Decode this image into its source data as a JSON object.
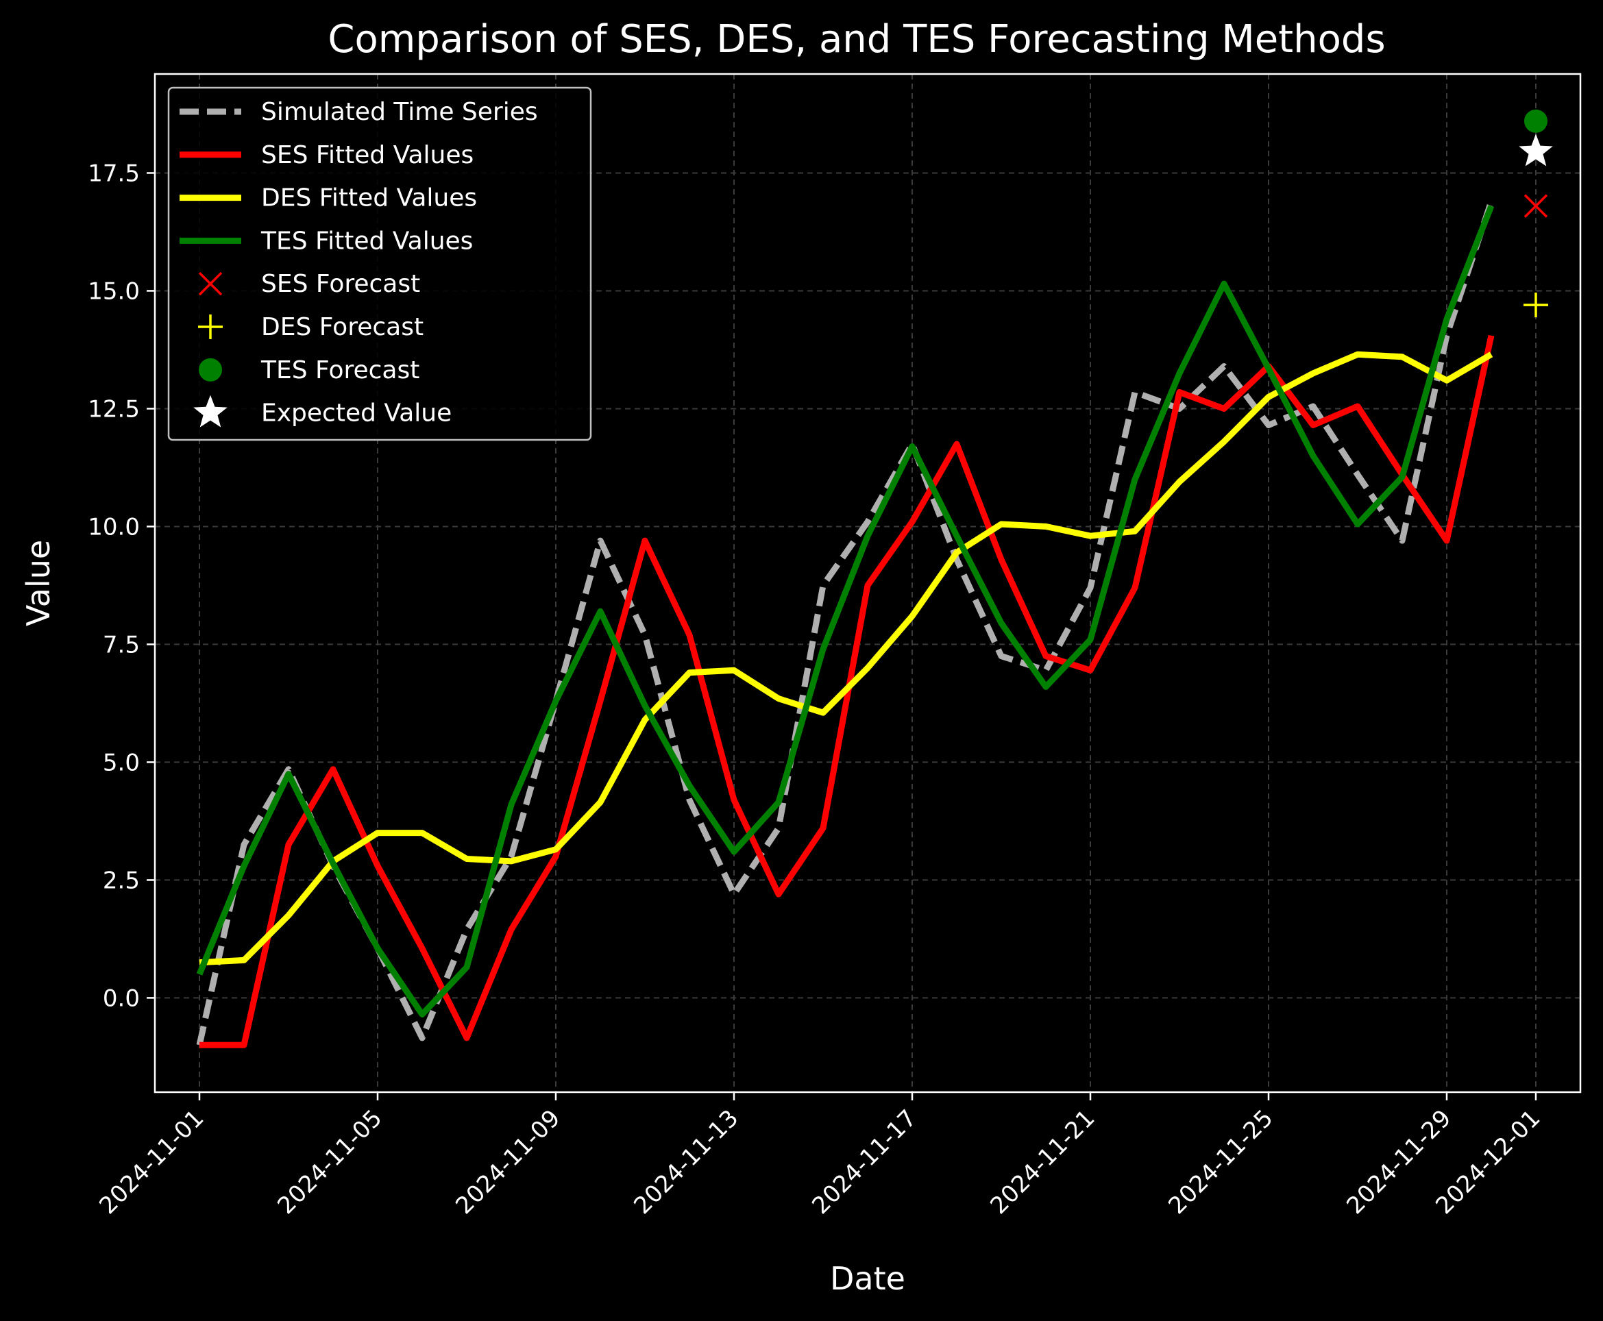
{
  "chart_data": {
    "type": "line",
    "title": "Comparison of SES, DES, and TES Forecasting Methods",
    "xlabel": "Date",
    "ylabel": "Value",
    "x": [
      "2024-11-01",
      "2024-11-02",
      "2024-11-03",
      "2024-11-04",
      "2024-11-05",
      "2024-11-06",
      "2024-11-07",
      "2024-11-08",
      "2024-11-09",
      "2024-11-10",
      "2024-11-11",
      "2024-11-12",
      "2024-11-13",
      "2024-11-14",
      "2024-11-15",
      "2024-11-16",
      "2024-11-17",
      "2024-11-18",
      "2024-11-19",
      "2024-11-20",
      "2024-11-21",
      "2024-11-22",
      "2024-11-23",
      "2024-11-24",
      "2024-11-25",
      "2024-11-26",
      "2024-11-27",
      "2024-11-28",
      "2024-11-29",
      "2024-11-30"
    ],
    "x_ticks": [
      "2024-11-01",
      "2024-11-05",
      "2024-11-09",
      "2024-11-13",
      "2024-11-17",
      "2024-11-21",
      "2024-11-25",
      "2024-11-29",
      "2024-12-01"
    ],
    "y_ticks": [
      "0.0",
      "2.5",
      "5.0",
      "7.5",
      "10.0",
      "12.5",
      "15.0",
      "17.5"
    ],
    "xlim": [
      "2024-10-31",
      "2024-12-02"
    ],
    "ylim": [
      -2.0,
      19.6
    ],
    "grid": true,
    "legend_position": "top-left",
    "series": [
      {
        "name": "Simulated Time Series",
        "color": "#b0b0b0",
        "style": "dashed",
        "values": [
          -1.0,
          3.25,
          4.85,
          2.8,
          1.05,
          -0.85,
          1.45,
          3.0,
          6.3,
          9.7,
          7.7,
          4.2,
          2.2,
          3.6,
          8.75,
          10.1,
          11.75,
          9.3,
          7.25,
          6.95,
          8.7,
          12.85,
          12.5,
          13.4,
          12.15,
          12.55,
          11.1,
          9.7,
          14.05,
          16.9
        ]
      },
      {
        "name": "SES Fitted Values",
        "color": "#ff0000",
        "style": "solid",
        "values": [
          -1.0,
          -1.0,
          3.25,
          4.85,
          2.8,
          1.05,
          -0.85,
          1.45,
          3.0,
          6.3,
          9.7,
          7.7,
          4.2,
          2.2,
          3.6,
          8.75,
          10.1,
          11.75,
          9.3,
          7.25,
          6.95,
          8.7,
          12.85,
          12.5,
          13.4,
          12.15,
          12.55,
          11.1,
          9.7,
          14.05
        ]
      },
      {
        "name": "DES Fitted Values",
        "color": "#ffff00",
        "style": "solid",
        "values": [
          0.75,
          0.8,
          1.75,
          2.9,
          3.5,
          3.5,
          2.95,
          2.9,
          3.15,
          4.15,
          5.9,
          6.9,
          6.95,
          6.35,
          6.05,
          7.0,
          8.1,
          9.45,
          10.05,
          10.0,
          9.8,
          9.9,
          10.95,
          11.8,
          12.75,
          13.25,
          13.65,
          13.6,
          13.1,
          13.65
        ]
      },
      {
        "name": "TES Fitted Values",
        "color": "#008000",
        "style": "solid",
        "values": [
          0.5,
          2.8,
          4.75,
          2.85,
          1.05,
          -0.35,
          0.65,
          4.1,
          6.3,
          8.2,
          6.2,
          4.5,
          3.1,
          4.15,
          7.4,
          9.8,
          11.7,
          9.8,
          7.95,
          6.6,
          7.6,
          11.0,
          13.25,
          15.15,
          13.35,
          11.5,
          10.05,
          11.05,
          14.4,
          16.8
        ]
      }
    ],
    "forecasts": [
      {
        "name": "SES Forecast",
        "color": "#ff0000",
        "marker": "x",
        "x": "2024-12-01",
        "value": 16.8
      },
      {
        "name": "DES Forecast",
        "color": "#ffff00",
        "marker": "plus",
        "x": "2024-12-01",
        "value": 14.7
      },
      {
        "name": "TES Forecast",
        "color": "#008000",
        "marker": "circle",
        "x": "2024-12-01",
        "value": 18.6
      },
      {
        "name": "Expected Value",
        "color": "#ffffff",
        "marker": "star",
        "x": "2024-12-01",
        "value": 17.95
      }
    ]
  }
}
